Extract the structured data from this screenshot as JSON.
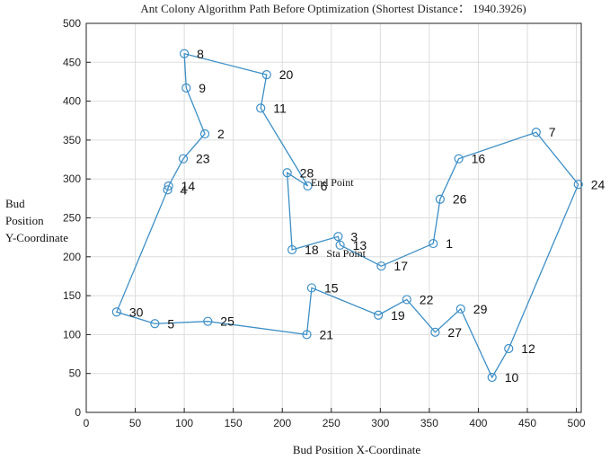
{
  "chart_data": {
    "type": "line",
    "title": "Ant Colony Algorithm Path Before Optimization (Shortest Distance： 1940.3926)",
    "xlabel": "Bud Position X-Coordinate",
    "ylabel": [
      "Bud",
      "Position",
      "Y-Coordinate"
    ],
    "xlim": [
      0,
      505
    ],
    "ylim": [
      0,
      500
    ],
    "xticks": [
      0,
      50,
      100,
      150,
      200,
      250,
      300,
      350,
      400,
      450,
      500
    ],
    "yticks": [
      0,
      50,
      100,
      150,
      200,
      250,
      300,
      350,
      400,
      450,
      500
    ],
    "grid": true,
    "line_color": "#3d8fc6",
    "points": [
      {
        "id": "1",
        "x": 354,
        "y": 217
      },
      {
        "id": "2",
        "x": 121,
        "y": 358
      },
      {
        "id": "3",
        "x": 257,
        "y": 226
      },
      {
        "id": "4",
        "x": 83,
        "y": 286
      },
      {
        "id": "5",
        "x": 70,
        "y": 114
      },
      {
        "id": "6",
        "x": 226,
        "y": 291
      },
      {
        "id": "7",
        "x": 459,
        "y": 360
      },
      {
        "id": "8",
        "x": 100,
        "y": 461
      },
      {
        "id": "9",
        "x": 102,
        "y": 417
      },
      {
        "id": "10",
        "x": 414,
        "y": 45
      },
      {
        "id": "11",
        "x": 178,
        "y": 391
      },
      {
        "id": "12",
        "x": 431,
        "y": 82
      },
      {
        "id": "13",
        "x": 259,
        "y": 215
      },
      {
        "id": "14",
        "x": 84,
        "y": 291
      },
      {
        "id": "15",
        "x": 230,
        "y": 160
      },
      {
        "id": "16",
        "x": 380,
        "y": 326
      },
      {
        "id": "17",
        "x": 301,
        "y": 188
      },
      {
        "id": "18",
        "x": 210,
        "y": 209
      },
      {
        "id": "19",
        "x": 298,
        "y": 125
      },
      {
        "id": "20",
        "x": 184,
        "y": 434
      },
      {
        "id": "21",
        "x": 225,
        "y": 100
      },
      {
        "id": "22",
        "x": 327,
        "y": 145
      },
      {
        "id": "23",
        "x": 99,
        "y": 326
      },
      {
        "id": "24",
        "x": 502,
        "y": 293
      },
      {
        "id": "25",
        "x": 124,
        "y": 117
      },
      {
        "id": "26",
        "x": 361,
        "y": 274
      },
      {
        "id": "27",
        "x": 356,
        "y": 103
      },
      {
        "id": "28",
        "x": 205,
        "y": 308
      },
      {
        "id": "29",
        "x": 382,
        "y": 133
      },
      {
        "id": "30",
        "x": 31,
        "y": 129
      }
    ],
    "route": [
      "13",
      "3",
      "18",
      "28",
      "6",
      "11",
      "20",
      "8",
      "9",
      "2",
      "23",
      "14",
      "4",
      "30",
      "5",
      "25",
      "21",
      "15",
      "19",
      "22",
      "27",
      "29",
      "10",
      "12",
      "24",
      "7",
      "16",
      "26",
      "1",
      "17",
      "13"
    ],
    "annotations": [
      {
        "text": "End Point",
        "x": 229,
        "y": 291
      },
      {
        "text": "Sta Point",
        "x": 245,
        "y": 200
      }
    ]
  }
}
